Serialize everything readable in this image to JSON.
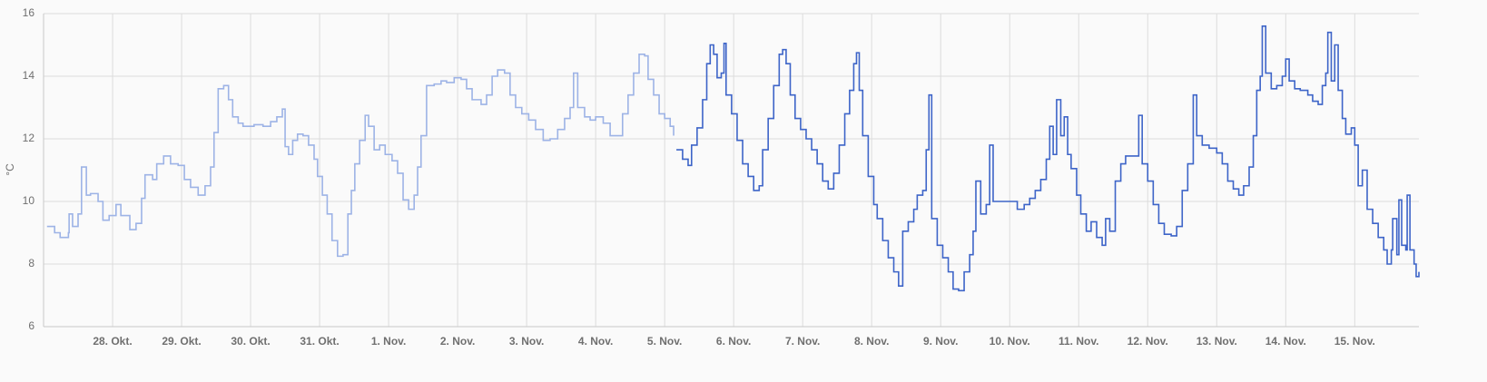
{
  "chart_data": {
    "type": "step-line",
    "ylabel": "°C",
    "xlim": [
      27,
      46.93
    ],
    "ylim": [
      6,
      16
    ],
    "yticks": [
      6,
      8,
      10,
      12,
      14,
      16
    ],
    "xticks": [
      {
        "value": 28,
        "label": "28. Okt."
      },
      {
        "value": 29,
        "label": "29. Okt."
      },
      {
        "value": 30,
        "label": "30. Okt."
      },
      {
        "value": 31,
        "label": "31. Okt."
      },
      {
        "value": 32,
        "label": "1. Nov."
      },
      {
        "value": 33,
        "label": "2. Nov."
      },
      {
        "value": 34,
        "label": "3. Nov."
      },
      {
        "value": 35,
        "label": "4. Nov."
      },
      {
        "value": 36,
        "label": "5. Nov."
      },
      {
        "value": 37,
        "label": "6. Nov."
      },
      {
        "value": 38,
        "label": "7. Nov."
      },
      {
        "value": 39,
        "label": "8. Nov."
      },
      {
        "value": 40,
        "label": "9. Nov."
      },
      {
        "value": 41,
        "label": "10. Nov."
      },
      {
        "value": 42,
        "label": "11. Nov."
      },
      {
        "value": 43,
        "label": "12. Nov."
      },
      {
        "value": 44,
        "label": "13. Nov."
      },
      {
        "value": 45,
        "label": "14. Nov."
      },
      {
        "value": 46,
        "label": "15. Nov."
      }
    ],
    "grid": true,
    "series": [
      {
        "color": "#9db3e6",
        "x": [
          27.05,
          27.16,
          27.24,
          27.36,
          27.37,
          27.42,
          27.5,
          27.55,
          27.62,
          27.68,
          27.79,
          27.86,
          27.95,
          28.05,
          28.12,
          28.25,
          28.34,
          28.42,
          28.47,
          28.58,
          28.64,
          28.74,
          28.84,
          28.95,
          29.04,
          29.13,
          29.24,
          29.34,
          29.42,
          29.47,
          29.53,
          29.61,
          29.68,
          29.74,
          29.82,
          29.89,
          30.05,
          30.18,
          30.29,
          30.38,
          30.46,
          30.5,
          30.55,
          30.61,
          30.68,
          30.76,
          30.84,
          30.92,
          30.97,
          31.04,
          31.11,
          31.18,
          31.26,
          31.34,
          31.41,
          31.46,
          31.51,
          31.58,
          31.66,
          31.71,
          31.79,
          31.87,
          31.95,
          32.05,
          32.13,
          32.21,
          32.29,
          32.37,
          32.42,
          32.47,
          32.55,
          32.66,
          32.76,
          32.84,
          32.95,
          33.05,
          33.13,
          33.21,
          33.34,
          33.42,
          33.5,
          33.58,
          33.68,
          33.76,
          33.84,
          33.93,
          34.03,
          34.13,
          34.24,
          34.34,
          34.45,
          34.55,
          34.63,
          34.68,
          34.74,
          34.84,
          34.92,
          35.0,
          35.11,
          35.21,
          35.32,
          35.39,
          35.47,
          35.55,
          35.63,
          35.71,
          35.76,
          35.84,
          35.92,
          36.0,
          36.08,
          36.13
        ],
        "values": [
          9.2,
          9.0,
          8.85,
          9.0,
          9.6,
          9.2,
          9.6,
          11.1,
          10.2,
          10.25,
          10.0,
          9.4,
          9.55,
          9.9,
          9.55,
          9.1,
          9.3,
          10.1,
          10.85,
          10.7,
          11.2,
          11.45,
          11.2,
          11.15,
          10.7,
          10.45,
          10.2,
          10.5,
          11.1,
          12.2,
          13.6,
          13.7,
          13.25,
          12.7,
          12.5,
          12.4,
          12.45,
          12.4,
          12.55,
          12.7,
          12.95,
          11.75,
          11.5,
          11.95,
          12.15,
          12.1,
          11.8,
          11.35,
          10.8,
          10.2,
          9.6,
          8.75,
          8.25,
          8.3,
          9.6,
          10.35,
          11.2,
          11.95,
          12.75,
          12.4,
          11.65,
          11.8,
          11.5,
          11.3,
          10.9,
          10.05,
          9.75,
          10.2,
          11.1,
          12.1,
          13.7,
          13.75,
          13.85,
          13.8,
          13.95,
          13.9,
          13.6,
          13.25,
          13.1,
          13.4,
          14.0,
          14.2,
          14.1,
          13.4,
          13.0,
          12.8,
          12.6,
          12.3,
          11.95,
          12.0,
          12.3,
          12.65,
          13.0,
          14.1,
          13.0,
          12.7,
          12.6,
          12.7,
          12.5,
          12.1,
          12.1,
          12.8,
          13.4,
          14.1,
          14.7,
          14.65,
          13.9,
          13.4,
          12.8,
          12.65,
          12.4,
          12.1
        ]
      },
      {
        "color": "#3d64c8",
        "x": [
          36.17,
          36.26,
          36.34,
          36.39,
          36.47,
          36.55,
          36.61,
          36.66,
          36.71,
          36.76,
          36.82,
          36.86,
          36.89,
          36.97,
          37.05,
          37.13,
          37.21,
          37.29,
          37.37,
          37.42,
          37.5,
          37.58,
          37.66,
          37.71,
          37.76,
          37.82,
          37.89,
          37.97,
          38.05,
          38.13,
          38.21,
          38.29,
          38.37,
          38.45,
          38.53,
          38.61,
          38.68,
          38.74,
          38.78,
          38.82,
          38.87,
          38.95,
          39.03,
          39.08,
          39.16,
          39.24,
          39.32,
          39.39,
          39.45,
          39.53,
          39.61,
          39.66,
          39.74,
          39.79,
          39.83,
          39.87,
          39.95,
          40.03,
          40.11,
          40.18,
          40.26,
          40.34,
          40.42,
          40.47,
          40.51,
          40.58,
          40.66,
          40.71,
          40.76,
          40.89,
          41.03,
          41.11,
          41.21,
          41.29,
          41.37,
          41.45,
          41.53,
          41.58,
          41.63,
          41.68,
          41.74,
          41.79,
          41.84,
          41.89,
          41.97,
          42.03,
          42.11,
          42.18,
          42.26,
          42.34,
          42.39,
          42.45,
          42.53,
          42.61,
          42.68,
          42.79,
          42.87,
          42.92,
          43.0,
          43.08,
          43.16,
          43.24,
          43.34,
          43.42,
          43.5,
          43.58,
          43.66,
          43.71,
          43.79,
          43.89,
          44.0,
          44.08,
          44.16,
          44.24,
          44.32,
          44.39,
          44.47,
          44.53,
          44.58,
          44.63,
          44.66,
          44.71,
          44.79,
          44.87,
          44.95,
          45.0,
          45.05,
          45.13,
          45.21,
          45.32,
          45.39,
          45.47,
          45.53,
          45.58,
          45.61,
          45.66,
          45.71,
          45.76,
          45.82,
          45.87,
          45.95,
          46.0,
          46.05,
          46.11,
          46.18,
          46.26,
          46.34,
          46.42,
          46.47,
          46.53,
          46.55,
          46.61,
          46.64,
          46.68,
          46.74,
          46.76,
          46.8,
          46.86,
          46.89,
          46.93
        ],
        "values": [
          11.65,
          11.35,
          11.15,
          11.8,
          12.35,
          13.25,
          14.4,
          15.0,
          14.7,
          13.95,
          14.1,
          15.05,
          13.4,
          12.8,
          11.95,
          11.2,
          10.8,
          10.35,
          10.5,
          11.65,
          12.65,
          13.7,
          14.7,
          14.85,
          14.4,
          13.4,
          12.65,
          12.3,
          12.0,
          11.65,
          11.2,
          10.65,
          10.4,
          10.9,
          11.8,
          12.8,
          13.55,
          14.4,
          14.75,
          13.55,
          12.1,
          10.8,
          9.9,
          9.45,
          8.75,
          8.2,
          7.75,
          7.3,
          9.05,
          9.35,
          9.75,
          10.2,
          10.35,
          11.65,
          13.4,
          9.45,
          8.6,
          8.2,
          7.75,
          7.2,
          7.15,
          7.75,
          8.3,
          9.05,
          10.65,
          9.6,
          9.9,
          11.8,
          10.0,
          10.0,
          10.0,
          9.75,
          9.9,
          10.1,
          10.35,
          10.7,
          11.35,
          12.4,
          11.5,
          13.25,
          12.1,
          12.7,
          11.5,
          11.05,
          10.2,
          9.6,
          9.05,
          9.35,
          8.85,
          8.6,
          9.45,
          9.05,
          10.65,
          11.2,
          11.45,
          11.45,
          12.75,
          11.2,
          10.65,
          9.9,
          9.3,
          8.95,
          8.9,
          9.2,
          10.35,
          11.2,
          13.4,
          12.1,
          11.8,
          11.7,
          11.55,
          11.2,
          10.65,
          10.4,
          10.2,
          10.5,
          11.1,
          12.1,
          13.55,
          14.0,
          15.6,
          14.1,
          13.6,
          13.7,
          14.0,
          14.55,
          13.85,
          13.6,
          13.55,
          13.4,
          13.2,
          13.1,
          13.7,
          14.1,
          15.4,
          13.85,
          15.0,
          13.55,
          12.65,
          12.15,
          12.35,
          11.8,
          10.5,
          11.0,
          9.75,
          9.3,
          8.85,
          8.45,
          8.0,
          8.45,
          9.45,
          8.3,
          10.05,
          8.6,
          8.45,
          10.2,
          8.45,
          8.0,
          7.6,
          7.75
        ]
      }
    ]
  }
}
